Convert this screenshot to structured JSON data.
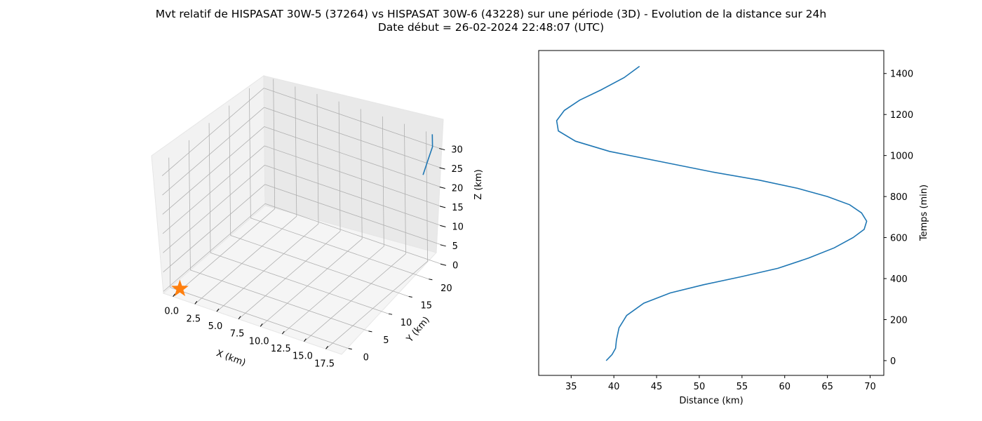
{
  "figure": {
    "title_line1": "Mvt relatif de HISPASAT 30W-5 (37264) vs HISPASAT 30W-6 (43228) sur une période (3D) - Evolution de la distance sur 24h",
    "title_line2": "Date début = 26-02-2024 22:48:07 (UTC)"
  },
  "colors": {
    "series": "#1f77b4",
    "marker": "#ff7f0e",
    "pane": "#f2f2f2",
    "grid": "#b0b0b0"
  },
  "chart_data": [
    {
      "type": "line",
      "projection": "3d",
      "xlabel": "X (km)",
      "ylabel": "Y (km)",
      "zlabel": "Z (km)",
      "x_ticks": [
        "0.0",
        "2.5",
        "5.0",
        "7.5",
        "10.0",
        "12.5",
        "15.0",
        "17.5"
      ],
      "y_ticks": [
        "0",
        "5",
        "10",
        "15",
        "20"
      ],
      "z_ticks": [
        "0",
        "5",
        "10",
        "15",
        "20",
        "25",
        "30"
      ],
      "grid": true,
      "series": [
        {
          "points": [
            [
              17.6,
              22.5,
              23
            ],
            [
              18.0,
              23.0,
              27
            ],
            [
              18.3,
              23.4,
              30
            ],
            [
              18.2,
              23.6,
              33
            ]
          ]
        }
      ],
      "marker": {
        "symbol": "star",
        "x": 0,
        "y": 0,
        "z": 0
      }
    },
    {
      "type": "line",
      "xlabel": "Distance (km)",
      "ylabel": "Temps (min)",
      "x_ticks": [
        35,
        40,
        45,
        50,
        55,
        60,
        65,
        70
      ],
      "y_ticks": [
        0,
        200,
        400,
        600,
        800,
        1000,
        1200,
        1400
      ],
      "xlim": [
        31.2,
        71.6
      ],
      "ylim": [
        -72,
        1512
      ],
      "y_axis_side": "right",
      "grid": false,
      "series": [
        {
          "x": [
            39.1,
            39.8,
            40.2,
            40.3,
            40.6,
            41.5,
            43.5,
            46.6,
            50.5,
            55.0,
            59.2,
            62.8,
            65.8,
            68.0,
            69.3,
            69.6,
            69.0,
            67.6,
            65.0,
            61.5,
            57.0,
            51.5,
            45.5,
            39.5,
            35.5,
            33.5,
            33.3,
            34.2,
            36.0,
            38.5,
            41.2,
            43.0
          ],
          "y": [
            0,
            30,
            60,
            100,
            160,
            220,
            280,
            330,
            370,
            410,
            450,
            500,
            550,
            600,
            640,
            680,
            720,
            760,
            800,
            840,
            880,
            920,
            970,
            1020,
            1070,
            1120,
            1170,
            1220,
            1270,
            1320,
            1380,
            1435
          ]
        }
      ]
    }
  ]
}
